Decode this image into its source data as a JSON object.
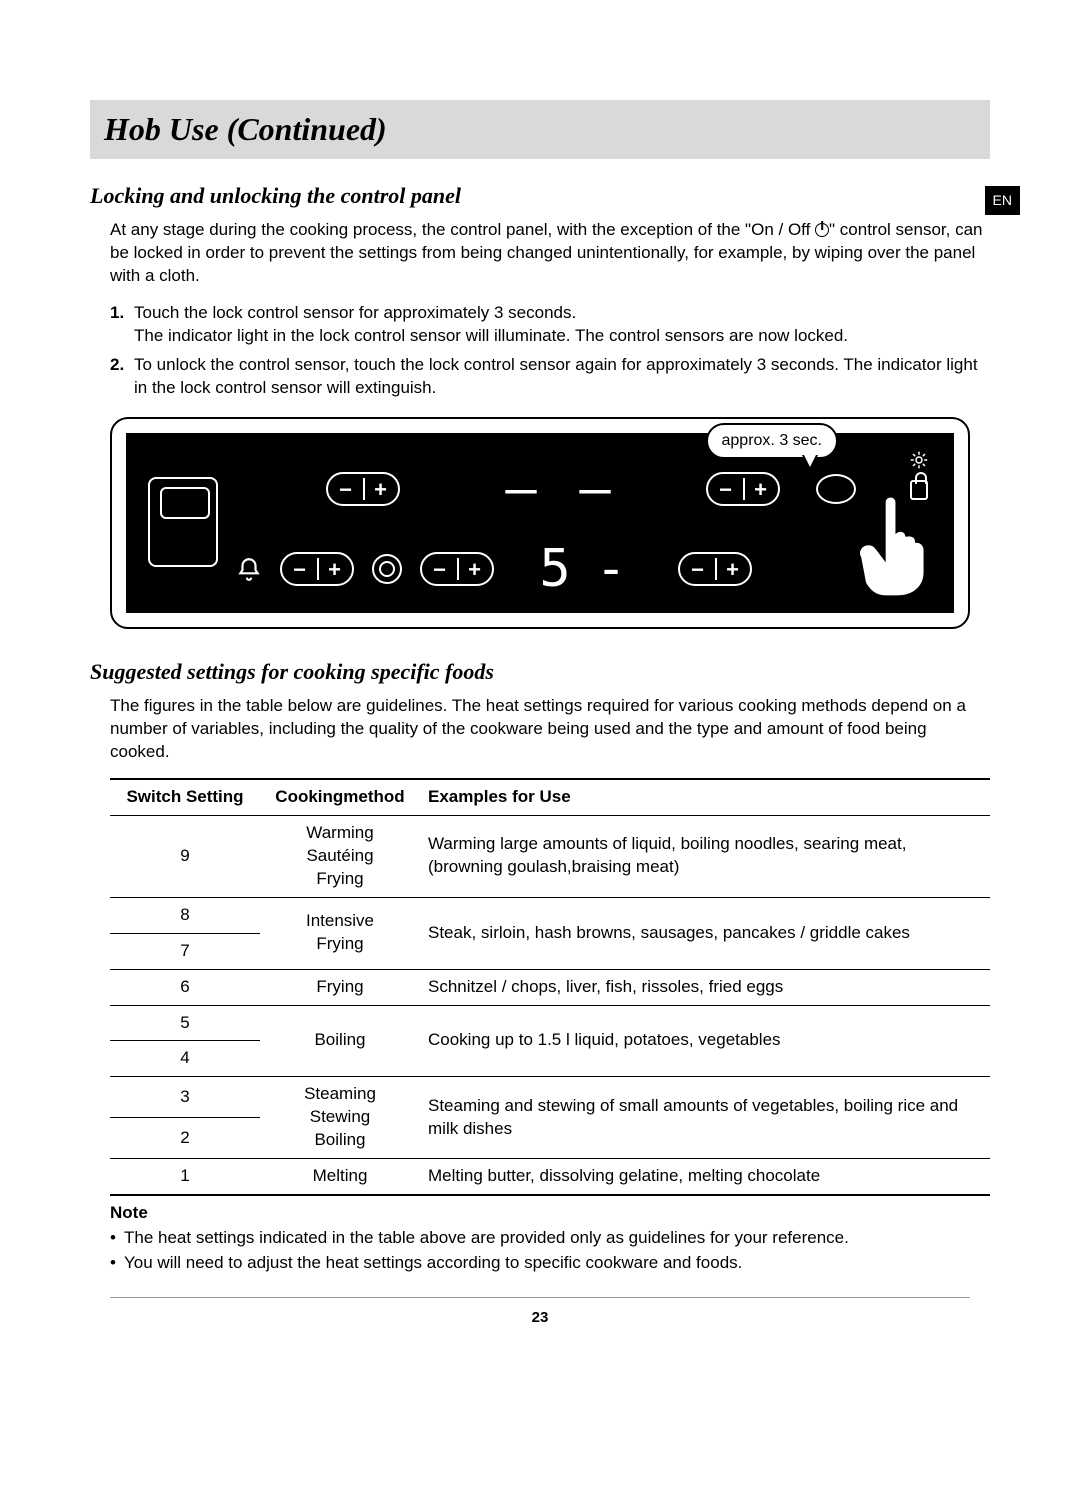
{
  "header": {
    "title": "Hob Use (Continued)"
  },
  "lang_badge": "EN",
  "section1": {
    "heading": "Locking and unlocking the control panel",
    "intro_pre": "At any stage during the cooking process, the control panel, with the exception of the \"On / Off ",
    "intro_post": "\" control sensor, can be locked in order to prevent the settings from being changed unintentionally, for example, by wiping over the panel with a cloth.",
    "steps": [
      "Touch the lock control sensor for approximately 3 seconds.\nThe indicator light in the lock control sensor will illuminate. The control sensors are now locked.",
      "To unlock the control sensor, touch the lock control sensor again for approximately 3 seconds. The indicator light in the lock control sensor will extinguish."
    ],
    "callout": "approx. 3 sec.",
    "display_left": "5",
    "display_right": "-"
  },
  "section2": {
    "heading": "Suggested settings for cooking specific foods",
    "intro": "The figures in the table below are guidelines. The heat settings required for various cooking methods depend on a number of variables, including the quality of the cookware being used and the type and amount of food being cooked.",
    "columns": [
      "Switch Setting",
      "Cookingmethod",
      "Examples for Use"
    ],
    "rows": [
      {
        "setting": "9",
        "method": "Warming\nSautéing\nFrying",
        "example": "Warming large amounts of liquid, boiling noodles, searing meat, (browning goulash,braising meat)",
        "span_method": 1,
        "span_example": 1,
        "bottom": true
      },
      {
        "setting": "8",
        "method": "Intensive\nFrying",
        "example": "Steak, sirloin, hash browns, sausages, pancakes / griddle cakes",
        "span_method": 2,
        "span_example": 2
      },
      {
        "setting": "7",
        "bottom": true
      },
      {
        "setting": "6",
        "method": "Frying",
        "example": "Schnitzel / chops, liver, fish, rissoles, fried eggs",
        "span_method": 1,
        "span_example": 1,
        "bottom": true
      },
      {
        "setting": "5",
        "method": "Boiling",
        "example": "Cooking up to 1.5 l liquid, potatoes, vegetables",
        "span_method": 2,
        "span_example": 2
      },
      {
        "setting": "4",
        "bottom": true
      },
      {
        "setting": "3",
        "method": "Steaming\nStewing\nBoiling",
        "example": "Steaming and stewing of small amounts of vegetables, boiling rice and milk dishes",
        "span_method": 2,
        "span_example": 2
      },
      {
        "setting": "2",
        "bottom": true
      },
      {
        "setting": "1",
        "method": "Melting",
        "example": "Melting butter, dissolving gelatine, melting chocolate",
        "span_method": 1,
        "span_example": 1,
        "last": true
      }
    ],
    "note_label": "Note",
    "notes": [
      "The heat settings indicated in the table above are provided only as guidelines for your reference.",
      "You will need to adjust the heat settings according to specific cookware and foods."
    ]
  },
  "page_number": "23"
}
